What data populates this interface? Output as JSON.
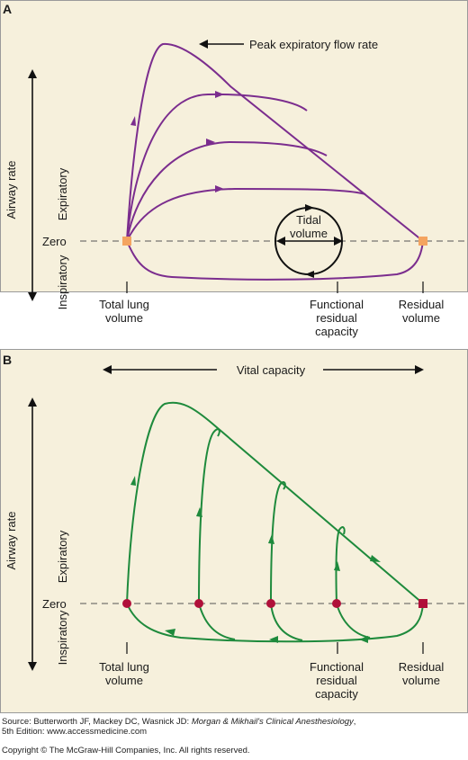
{
  "panel_a": {
    "letter": "A",
    "peak_label": "Peak expiratory flow rate",
    "tidal_label_1": "Tidal",
    "tidal_label_2": "volume",
    "y_axis": "Airway rate",
    "expiratory": "Expiratory",
    "inspiratory": "Inspiratory",
    "zero": "Zero",
    "x_labels": {
      "tlc_1": "Total lung",
      "tlc_2": "volume",
      "frc_1": "Functional",
      "frc_2": "residual",
      "frc_3": "capacity",
      "rv_1": "Residual",
      "rv_2": "volume"
    },
    "curve_color": "#7b2d8e",
    "marker_color": "#f4a460"
  },
  "panel_b": {
    "letter": "B",
    "vital_capacity": "Vital capacity",
    "y_axis": "Airway rate",
    "expiratory": "Expiratory",
    "inspiratory": "Inspiratory",
    "zero": "Zero",
    "x_labels": {
      "tlc_1": "Total lung",
      "tlc_2": "volume",
      "frc_1": "Functional",
      "frc_2": "residual",
      "frc_3": "capacity",
      "rv_1": "Residual",
      "rv_2": "volume"
    },
    "curve_color": "#1e8a3c",
    "marker_color": "#b0103a"
  },
  "footer": {
    "source_prefix": "Source: Butterworth JF, Mackey DC, Wasnick JD: ",
    "source_title": "Morgan & Mikhail's Clinical Anesthesiology",
    "source_suffix": ",",
    "source_line2": "5th Edition: www.accessmedicine.com",
    "copyright": "Copyright © The McGraw-Hill Companies, Inc. All rights reserved."
  }
}
